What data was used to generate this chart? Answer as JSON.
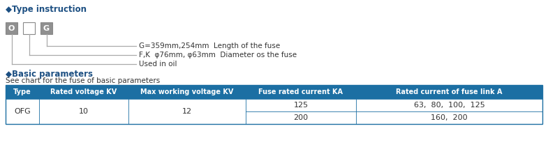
{
  "title1": "◆Type instruction",
  "title2": "◆Basic parameters",
  "subtitle": "See chart for the fuse of basic parameters",
  "box_labels": [
    "O",
    "",
    "G"
  ],
  "annotations": [
    "G=359mm,254mm  Length of the fuse",
    "F,K  φ76mm, φ63mm  Diameter os the fuse",
    "Used in oil"
  ],
  "header_color": "#1c6fa3",
  "header_text_color": "#ffffff",
  "table_headers": [
    "Type",
    "Rated voltage KV",
    "Max working voltage KV",
    "Fuse rated current KA",
    "Rated current of fuse link A"
  ],
  "row1": [
    "OFG",
    "10",
    "12",
    "125",
    "63,  80,  100,  125"
  ],
  "row2": [
    "",
    "",
    "",
    "200",
    "160,  200"
  ],
  "bg_color": "#ffffff",
  "title_color": "#1c4f82",
  "box_fill_gray": "#909090",
  "box_fill_white": "#ffffff",
  "line_color": "#aaaaaa",
  "table_line_color": "#1c6fa3",
  "cell_bg": "#ffffff"
}
